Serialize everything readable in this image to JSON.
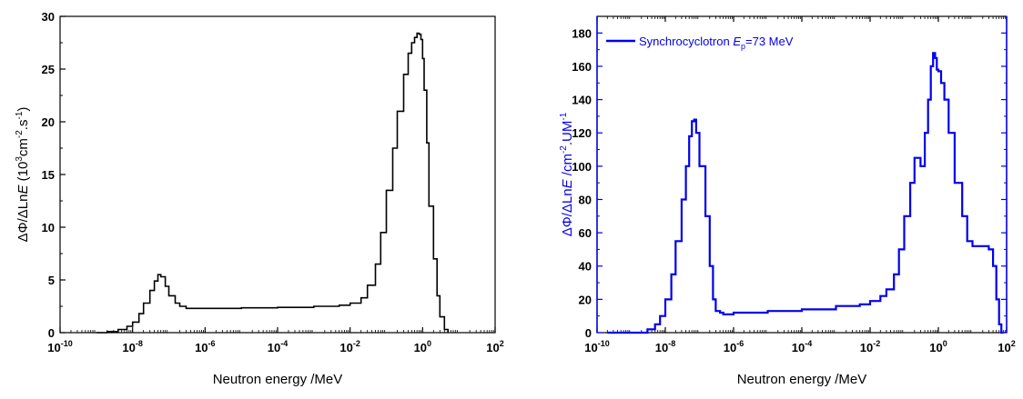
{
  "chart_data": [
    {
      "type": "line",
      "style": "step",
      "x_scale": "log",
      "xlim": [
        1e-10,
        100
      ],
      "ylim": [
        0,
        30
      ],
      "xlabel": "Neutron energy /MeV",
      "ylabel_parts": [
        "ΔΦ/ΔLn",
        "E",
        " (10",
        "3",
        "cm",
        "-2",
        ".s",
        "-1",
        ")"
      ],
      "x_tick_labels": [
        {
          "base": "10",
          "exp": "-10"
        },
        {
          "base": "10",
          "exp": "-8"
        },
        {
          "base": "10",
          "exp": "-6"
        },
        {
          "base": "10",
          "exp": "-4"
        },
        {
          "base": "10",
          "exp": "-2"
        },
        {
          "base": "10",
          "exp": "0"
        },
        {
          "base": "10",
          "exp": "2"
        }
      ],
      "x_tick_values": [
        1e-10,
        1e-08,
        1e-06,
        0.0001,
        0.01,
        1,
        100
      ],
      "y_tick_values": [
        0,
        5,
        10,
        15,
        20,
        25,
        30
      ],
      "y_tick_labels": [
        "0",
        "5",
        "10",
        "15",
        "20",
        "25",
        "30"
      ],
      "color": "#000000",
      "legend": "none",
      "series": [
        {
          "x": [
            1e-09,
            2e-09,
            4e-09,
            7e-09,
            1e-08,
            1.5e-08,
            2e-08,
            3e-08,
            4e-08,
            5e-08,
            6e-08,
            8e-08,
            1e-07,
            1.5e-07,
            2e-07,
            3e-07,
            5e-07,
            1e-06,
            1e-05,
            0.0001,
            0.001,
            0.005,
            0.01,
            0.02,
            0.03,
            0.05,
            0.07,
            0.1,
            0.15,
            0.2,
            0.3,
            0.4,
            0.5,
            0.6,
            0.7,
            0.8,
            0.9,
            1.0,
            1.1,
            1.3,
            1.5,
            2,
            2.5,
            3,
            4,
            5
          ],
          "y": [
            0.0,
            0.1,
            0.3,
            0.6,
            1.0,
            1.8,
            2.8,
            4.0,
            4.9,
            5.5,
            5.3,
            4.4,
            3.5,
            2.8,
            2.5,
            2.3,
            2.3,
            2.3,
            2.35,
            2.4,
            2.5,
            2.6,
            2.8,
            3.3,
            4.5,
            6.5,
            9.5,
            13.5,
            17.5,
            21.0,
            24.5,
            26.5,
            27.5,
            28.0,
            28.4,
            28.3,
            27.8,
            26.0,
            23.0,
            18.0,
            12.0,
            7.0,
            3.5,
            1.5,
            0.3,
            0.0
          ]
        }
      ]
    },
    {
      "type": "line",
      "style": "step",
      "x_scale": "log",
      "xlim": [
        1e-10,
        100
      ],
      "ylim": [
        0,
        190
      ],
      "xlabel": "Neutron energy /MeV",
      "ylabel_parts": [
        "ΔΦ/ΔLn",
        "E",
        " /cm",
        "-2",
        ".UM",
        "-1"
      ],
      "x_tick_labels": [
        {
          "base": "10",
          "exp": "-10"
        },
        {
          "base": "10",
          "exp": "-8"
        },
        {
          "base": "10",
          "exp": "-6"
        },
        {
          "base": "10",
          "exp": "-4"
        },
        {
          "base": "10",
          "exp": "-2"
        },
        {
          "base": "10",
          "exp": "0"
        },
        {
          "base": "10",
          "exp": "2"
        }
      ],
      "x_tick_values": [
        1e-10,
        1e-08,
        1e-06,
        0.0001,
        0.01,
        1,
        100
      ],
      "y_tick_values": [
        0,
        20,
        40,
        60,
        80,
        100,
        120,
        140,
        160,
        180
      ],
      "y_tick_labels": [
        "0",
        "20",
        "40",
        "60",
        "80",
        "100",
        "120",
        "140",
        "160",
        "180"
      ],
      "color": "#0000ee",
      "legend": "top-left",
      "series": [
        {
          "legend_parts": [
            "Synchrocyclotron ",
            "E",
            "p",
            "=73 MeV"
          ],
          "x": [
            2e-10,
            1e-09,
            3e-09,
            5e-09,
            7e-09,
            1e-08,
            1.5e-08,
            2e-08,
            3e-08,
            4e-08,
            5e-08,
            6e-08,
            7e-08,
            8e-08,
            1e-07,
            1.5e-07,
            2e-07,
            2.5e-07,
            3e-07,
            4e-07,
            5e-07,
            1e-06,
            1e-05,
            0.0001,
            0.001,
            0.005,
            0.01,
            0.02,
            0.03,
            0.05,
            0.07,
            0.1,
            0.15,
            0.2,
            0.3,
            0.4,
            0.5,
            0.6,
            0.7,
            0.8,
            0.9,
            1.0,
            1.2,
            1.5,
            2,
            3,
            5,
            7,
            10,
            20,
            30,
            40,
            50,
            60,
            70,
            80
          ],
          "y": [
            0,
            0,
            2,
            5,
            10,
            20,
            35,
            55,
            80,
            100,
            118,
            127,
            128,
            120,
            100,
            70,
            40,
            20,
            13,
            12,
            11,
            12,
            13,
            14,
            16,
            17,
            19,
            22,
            26,
            35,
            50,
            70,
            90,
            105,
            100,
            120,
            140,
            160,
            168,
            165,
            158,
            157,
            150,
            140,
            120,
            90,
            70,
            55,
            52,
            52,
            50,
            40,
            20,
            5,
            0,
            0
          ]
        }
      ]
    }
  ]
}
